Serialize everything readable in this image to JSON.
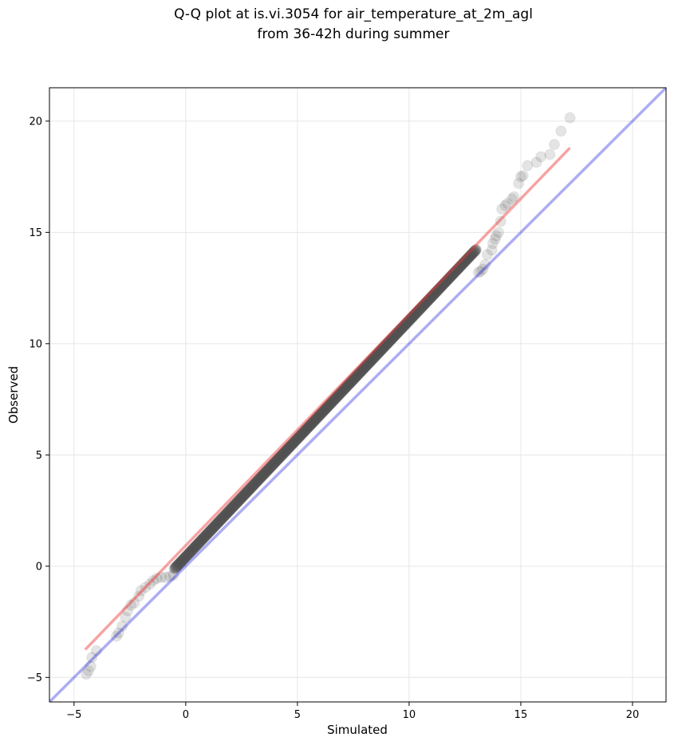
{
  "chart_data": {
    "type": "scatter",
    "title_line1": "Q-Q plot at is.vi.3054 for air_temperature_at_2m_agl",
    "title_line2": "from 36-42h during summer",
    "xlabel": "Simulated",
    "ylabel": "Observed",
    "xlim": [
      -6.1,
      21.5
    ],
    "ylim": [
      -6.1,
      21.5
    ],
    "xticks": [
      -5,
      0,
      5,
      10,
      15,
      20
    ],
    "yticks": [
      -5,
      0,
      5,
      10,
      15,
      20
    ],
    "xtick_labels": [
      "−5",
      "0",
      "5",
      "10",
      "15",
      "20"
    ],
    "ytick_labels": [
      "−5",
      "0",
      "5",
      "10",
      "15",
      "20"
    ],
    "grid": true,
    "colors": {
      "points": "#555555",
      "identity_line": "#0000dd",
      "fit_line": "#ee3333"
    },
    "identity_line": {
      "x": [
        -6.1,
        21.5
      ],
      "y": [
        -6.1,
        21.5
      ]
    },
    "fit_line": {
      "x": [
        -4.5,
        17.2
      ],
      "y": [
        -3.75,
        18.8
      ]
    },
    "tail_points": {
      "x": [
        -4.45,
        -4.35,
        -4.25,
        -4.2,
        -4.0,
        -3.1,
        -3.0,
        -2.85,
        -2.7,
        -2.6,
        -2.45,
        -2.3,
        -2.1,
        -2.0,
        -1.8,
        -1.6,
        -1.45,
        -1.3,
        -1.1,
        -0.9,
        -0.7,
        -0.55,
        13.1,
        13.2,
        13.3,
        13.4,
        13.5,
        13.7,
        13.75,
        13.85,
        13.9,
        14.0,
        14.1,
        14.15,
        14.3,
        14.4,
        14.6,
        14.7,
        14.9,
        15.0,
        15.1,
        15.3,
        15.7,
        15.9,
        16.3,
        16.5,
        16.8,
        17.2
      ],
      "y": [
        -4.85,
        -4.7,
        -4.5,
        -4.1,
        -3.8,
        -3.15,
        -3.0,
        -2.7,
        -2.3,
        -2.0,
        -1.75,
        -1.65,
        -1.35,
        -1.1,
        -0.95,
        -0.8,
        -0.65,
        -0.55,
        -0.5,
        -0.5,
        -0.45,
        -0.4,
        13.2,
        13.25,
        13.35,
        13.55,
        14.0,
        14.2,
        14.5,
        14.7,
        14.85,
        15.0,
        15.5,
        16.05,
        16.2,
        16.3,
        16.5,
        16.6,
        17.2,
        17.5,
        17.55,
        18.0,
        18.15,
        18.4,
        18.5,
        18.95,
        19.55,
        20.15
      ]
    },
    "body_points": {
      "x_start": -0.5,
      "x_end": 13.0,
      "count": 900,
      "intercept": 0.42,
      "slope": 1.062
    }
  }
}
